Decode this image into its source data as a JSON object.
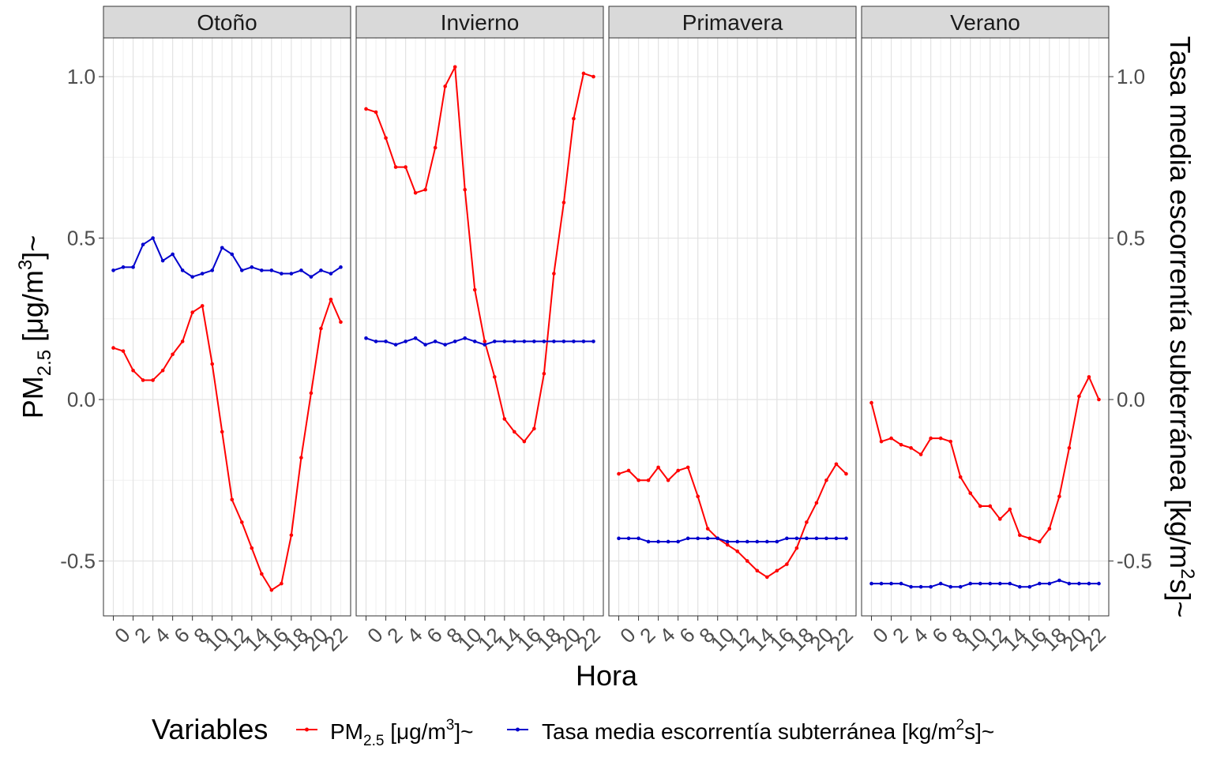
{
  "chart_data": {
    "type": "line",
    "facets": [
      "Otoño",
      "Invierno",
      "Primavera",
      "Verano"
    ],
    "x": [
      0,
      1,
      2,
      3,
      4,
      5,
      6,
      7,
      8,
      9,
      10,
      11,
      12,
      13,
      14,
      15,
      16,
      17,
      18,
      19,
      20,
      21,
      22,
      23
    ],
    "x_tick_labels": [
      "0",
      "2",
      "4",
      "6",
      "8",
      "10",
      "12",
      "14",
      "16",
      "18",
      "20",
      "22"
    ],
    "y_tick_labels": [
      "-0.5",
      "0.0",
      "0.5",
      "1.0"
    ],
    "y_ticks": [
      -0.5,
      0.0,
      0.5,
      1.0
    ],
    "xlim": [
      -1,
      24
    ],
    "ylim": [
      -0.67,
      1.12
    ],
    "xlabel": "Hora",
    "ylabel": {
      "main": "PM",
      "sub": "2.5",
      "rest": " [μg/m",
      "sup": "3",
      "end": "]~"
    },
    "y2label": {
      "main": "Tasa media escorrentía subterránea  [kg/m",
      "sup": "2",
      "end": "s]~"
    },
    "grid": true,
    "legend": {
      "position": "bottom",
      "title": "Variables",
      "entries": [
        {
          "main": "PM",
          "sub": "2.5",
          "rest": " [μg/m",
          "sup": "3",
          "end": "]~",
          "color": "#ff0000"
        },
        {
          "main": "Tasa media escorrentía subterránea  [kg/m",
          "sup": "2",
          "end": "s]~",
          "color": "#0000cd"
        }
      ]
    },
    "series": [
      {
        "id": "pm25",
        "color": "#ff0000",
        "values": {
          "Otoño": [
            0.16,
            0.15,
            0.09,
            0.06,
            0.06,
            0.09,
            0.14,
            0.18,
            0.27,
            0.29,
            0.11,
            -0.1,
            -0.31,
            -0.38,
            -0.46,
            -0.54,
            -0.59,
            -0.57,
            -0.42,
            -0.18,
            0.02,
            0.22,
            0.31,
            0.24
          ],
          "Invierno": [
            0.9,
            0.89,
            0.81,
            0.72,
            0.72,
            0.64,
            0.65,
            0.78,
            0.97,
            1.03,
            0.65,
            0.34,
            0.18,
            0.07,
            -0.06,
            -0.1,
            -0.13,
            -0.09,
            0.08,
            0.39,
            0.61,
            0.87,
            1.01,
            1.0
          ],
          "Primavera": [
            -0.23,
            -0.22,
            -0.25,
            -0.25,
            -0.21,
            -0.25,
            -0.22,
            -0.21,
            -0.3,
            -0.4,
            -0.43,
            -0.45,
            -0.47,
            -0.5,
            -0.53,
            -0.55,
            -0.53,
            -0.51,
            -0.46,
            -0.38,
            -0.32,
            -0.25,
            -0.2,
            -0.23
          ],
          "Verano": [
            -0.01,
            -0.13,
            -0.12,
            -0.14,
            -0.15,
            -0.17,
            -0.12,
            -0.12,
            -0.13,
            -0.24,
            -0.29,
            -0.33,
            -0.33,
            -0.37,
            -0.34,
            -0.42,
            -0.43,
            -0.44,
            -0.4,
            -0.3,
            -0.15,
            0.01,
            0.07,
            0.0
          ]
        }
      },
      {
        "id": "escorrentia",
        "color": "#0000cd",
        "values": {
          "Otoño": [
            0.4,
            0.41,
            0.41,
            0.48,
            0.5,
            0.43,
            0.45,
            0.4,
            0.38,
            0.39,
            0.4,
            0.47,
            0.45,
            0.4,
            0.41,
            0.4,
            0.4,
            0.39,
            0.39,
            0.4,
            0.38,
            0.4,
            0.39,
            0.41
          ],
          "Invierno": [
            0.19,
            0.18,
            0.18,
            0.17,
            0.18,
            0.19,
            0.17,
            0.18,
            0.17,
            0.18,
            0.19,
            0.18,
            0.17,
            0.18,
            0.18,
            0.18,
            0.18,
            0.18,
            0.18,
            0.18,
            0.18,
            0.18,
            0.18,
            0.18
          ],
          "Primavera": [
            -0.43,
            -0.43,
            -0.43,
            -0.44,
            -0.44,
            -0.44,
            -0.44,
            -0.43,
            -0.43,
            -0.43,
            -0.43,
            -0.44,
            -0.44,
            -0.44,
            -0.44,
            -0.44,
            -0.44,
            -0.43,
            -0.43,
            -0.43,
            -0.43,
            -0.43,
            -0.43,
            -0.43
          ],
          "Verano": [
            -0.57,
            -0.57,
            -0.57,
            -0.57,
            -0.58,
            -0.58,
            -0.58,
            -0.57,
            -0.58,
            -0.58,
            -0.57,
            -0.57,
            -0.57,
            -0.57,
            -0.57,
            -0.58,
            -0.58,
            -0.57,
            -0.57,
            -0.56,
            -0.57,
            -0.57,
            -0.57,
            -0.57
          ]
        }
      }
    ]
  }
}
